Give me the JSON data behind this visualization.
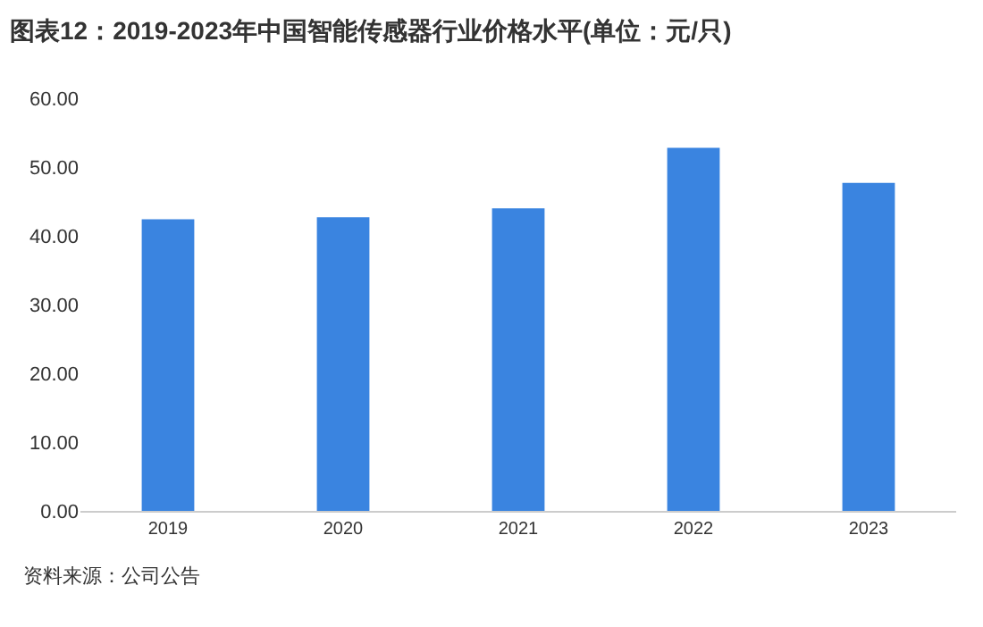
{
  "chart_data": {
    "type": "bar",
    "title": "图表12：2019-2023年中国智能传感器行业价格水平(单位：元/只)",
    "categories": [
      "2019",
      "2020",
      "2021",
      "2022",
      "2023"
    ],
    "values": [
      42.4,
      42.7,
      44.0,
      52.8,
      47.7
    ],
    "color": "#3a84e0",
    "ylim": [
      0,
      60
    ],
    "yticks": [
      {
        "value": 0,
        "label": "0.00"
      },
      {
        "value": 10,
        "label": "10.00"
      },
      {
        "value": 20,
        "label": "20.00"
      },
      {
        "value": 30,
        "label": "30.00"
      },
      {
        "value": 40,
        "label": "40.00"
      },
      {
        "value": 50,
        "label": "50.00"
      },
      {
        "value": 60,
        "label": "60.00"
      }
    ],
    "grid": false,
    "legend": false,
    "annotations": [
      "资料来源：公司公告"
    ]
  }
}
